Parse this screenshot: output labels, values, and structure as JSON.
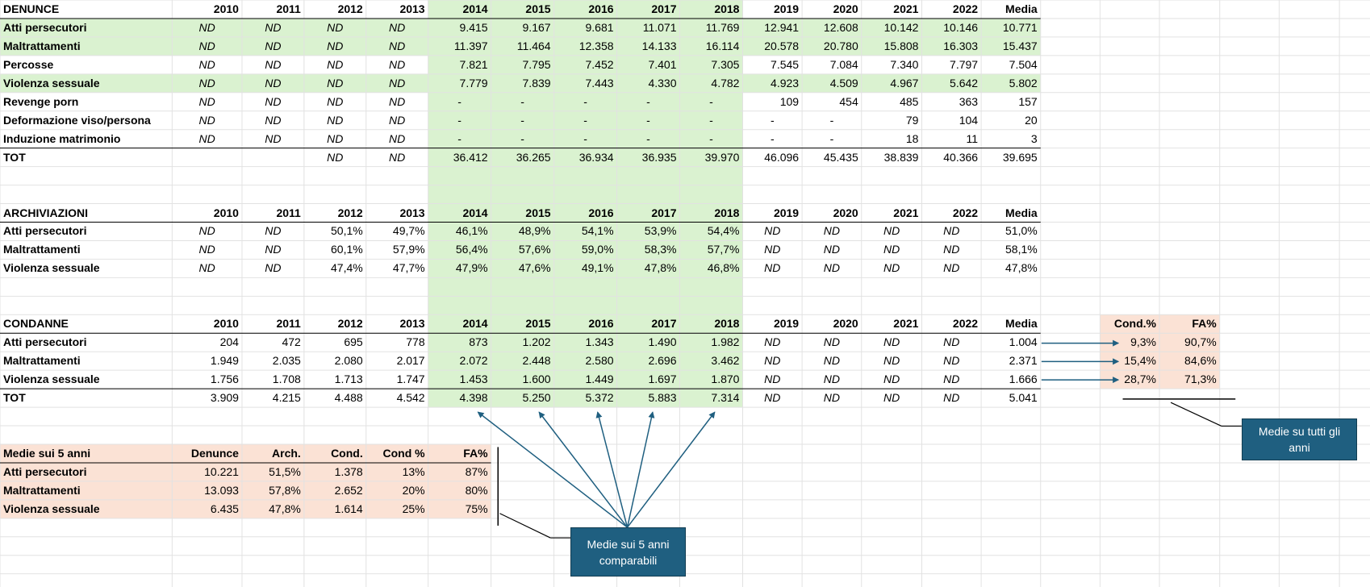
{
  "denunce": {
    "title": "DENUNCE",
    "columns": [
      "2010",
      "2011",
      "2012",
      "2013",
      "2014",
      "2015",
      "2016",
      "2017",
      "2018",
      "2019",
      "2020",
      "2021",
      "2022",
      "Media"
    ],
    "rows": [
      {
        "label": "Atti persecutori",
        "cells": [
          "ND",
          "ND",
          "ND",
          "ND",
          "9.415",
          "9.167",
          "9.681",
          "11.071",
          "11.769",
          "12.941",
          "12.608",
          "10.142",
          "10.146",
          "10.771"
        ]
      },
      {
        "label": "Maltrattamenti",
        "cells": [
          "ND",
          "ND",
          "ND",
          "ND",
          "11.397",
          "11.464",
          "12.358",
          "14.133",
          "16.114",
          "20.578",
          "20.780",
          "15.808",
          "16.303",
          "15.437"
        ]
      },
      {
        "label": "Percosse",
        "cells": [
          "ND",
          "ND",
          "ND",
          "ND",
          "7.821",
          "7.795",
          "7.452",
          "7.401",
          "7.305",
          "7.545",
          "7.084",
          "7.340",
          "7.797",
          "7.504"
        ]
      },
      {
        "label": "Violenza sessuale",
        "cells": [
          "ND",
          "ND",
          "ND",
          "ND",
          "7.779",
          "7.839",
          "7.443",
          "4.330",
          "4.782",
          "4.923",
          "4.509",
          "4.967",
          "5.642",
          "5.802"
        ]
      },
      {
        "label": "Revenge porn",
        "cells": [
          "ND",
          "ND",
          "ND",
          "ND",
          "-",
          "-",
          "-",
          "-",
          "-",
          "109",
          "454",
          "485",
          "363",
          "157"
        ]
      },
      {
        "label": "Deformazione viso/persona",
        "cells": [
          "ND",
          "ND",
          "ND",
          "ND",
          "-",
          "-",
          "-",
          "-",
          "-",
          "-",
          "-",
          "79",
          "104",
          "20"
        ]
      },
      {
        "label": "Induzione matrimonio",
        "cells": [
          "ND",
          "ND",
          "ND",
          "ND",
          "-",
          "-",
          "-",
          "-",
          "-",
          "-",
          "-",
          "18",
          "11",
          "3"
        ]
      }
    ],
    "total": {
      "label": "TOT",
      "cells": [
        null,
        null,
        "ND",
        "ND",
        "36.412",
        "36.265",
        "36.934",
        "36.935",
        "39.970",
        "46.096",
        "45.435",
        "38.839",
        "40.366",
        "39.695"
      ]
    }
  },
  "archiviazioni": {
    "title": "ARCHIVIAZIONI",
    "columns": [
      "2010",
      "2011",
      "2012",
      "2013",
      "2014",
      "2015",
      "2016",
      "2017",
      "2018",
      "2019",
      "2020",
      "2021",
      "2022",
      "Media"
    ],
    "rows": [
      {
        "label": "Atti persecutori",
        "cells": [
          "ND",
          "ND",
          "50,1%",
          "49,7%",
          "46,1%",
          "48,9%",
          "54,1%",
          "53,9%",
          "54,4%",
          "ND",
          "ND",
          "ND",
          "ND",
          "51,0%"
        ]
      },
      {
        "label": "Maltrattamenti",
        "cells": [
          "ND",
          "ND",
          "60,1%",
          "57,9%",
          "56,4%",
          "57,6%",
          "59,0%",
          "58,3%",
          "57,7%",
          "ND",
          "ND",
          "ND",
          "ND",
          "58,1%"
        ]
      },
      {
        "label": "Violenza sessuale",
        "cells": [
          "ND",
          "ND",
          "47,4%",
          "47,7%",
          "47,9%",
          "47,6%",
          "49,1%",
          "47,8%",
          "46,8%",
          "ND",
          "ND",
          "ND",
          "ND",
          "47,8%"
        ]
      }
    ]
  },
  "condanne": {
    "title": "CONDANNE",
    "columns": [
      "2010",
      "2011",
      "2012",
      "2013",
      "2014",
      "2015",
      "2016",
      "2017",
      "2018",
      "2019",
      "2020",
      "2021",
      "2022",
      "Media"
    ],
    "rows": [
      {
        "label": "Atti persecutori",
        "cells": [
          "204",
          "472",
          "695",
          "778",
          "873",
          "1.202",
          "1.343",
          "1.490",
          "1.982",
          "ND",
          "ND",
          "ND",
          "ND",
          "1.004"
        ]
      },
      {
        "label": "Maltrattamenti",
        "cells": [
          "1.949",
          "2.035",
          "2.080",
          "2.017",
          "2.072",
          "2.448",
          "2.580",
          "2.696",
          "3.462",
          "ND",
          "ND",
          "ND",
          "ND",
          "2.371"
        ]
      },
      {
        "label": "Violenza sessuale",
        "cells": [
          "1.756",
          "1.708",
          "1.713",
          "1.747",
          "1.453",
          "1.600",
          "1.449",
          "1.697",
          "1.870",
          "ND",
          "ND",
          "ND",
          "ND",
          "1.666"
        ]
      }
    ],
    "total": {
      "label": "TOT",
      "cells": [
        "3.909",
        "4.215",
        "4.488",
        "4.542",
        "4.398",
        "5.250",
        "5.372",
        "5.883",
        "7.314",
        "ND",
        "ND",
        "ND",
        "ND",
        "5.041"
      ]
    }
  },
  "medie_5_anni": {
    "title": "Medie sui 5 anni",
    "columns": [
      "Denunce",
      "Arch.",
      "Cond.",
      "Cond %",
      "FA%"
    ],
    "rows": [
      {
        "label": "Atti persecutori",
        "cells": [
          "10.221",
          "51,5%",
          "1.378",
          "13%",
          "87%"
        ]
      },
      {
        "label": "Maltrattamenti",
        "cells": [
          "13.093",
          "57,8%",
          "2.652",
          "20%",
          "80%"
        ]
      },
      {
        "label": "Violenza sessuale",
        "cells": [
          "6.435",
          "47,8%",
          "1.614",
          "25%",
          "75%"
        ]
      }
    ]
  },
  "medie_tutti": {
    "columns": [
      "Cond.%",
      "FA%"
    ],
    "rows": [
      {
        "cells": [
          "9,3%",
          "90,7%"
        ]
      },
      {
        "cells": [
          "15,4%",
          "84,6%"
        ]
      },
      {
        "cells": [
          "28,7%",
          "71,3%"
        ]
      }
    ]
  },
  "callouts": {
    "five_years": "Medie sui 5 anni comparabili",
    "all_years": "Medie su tutti gli anni"
  }
}
